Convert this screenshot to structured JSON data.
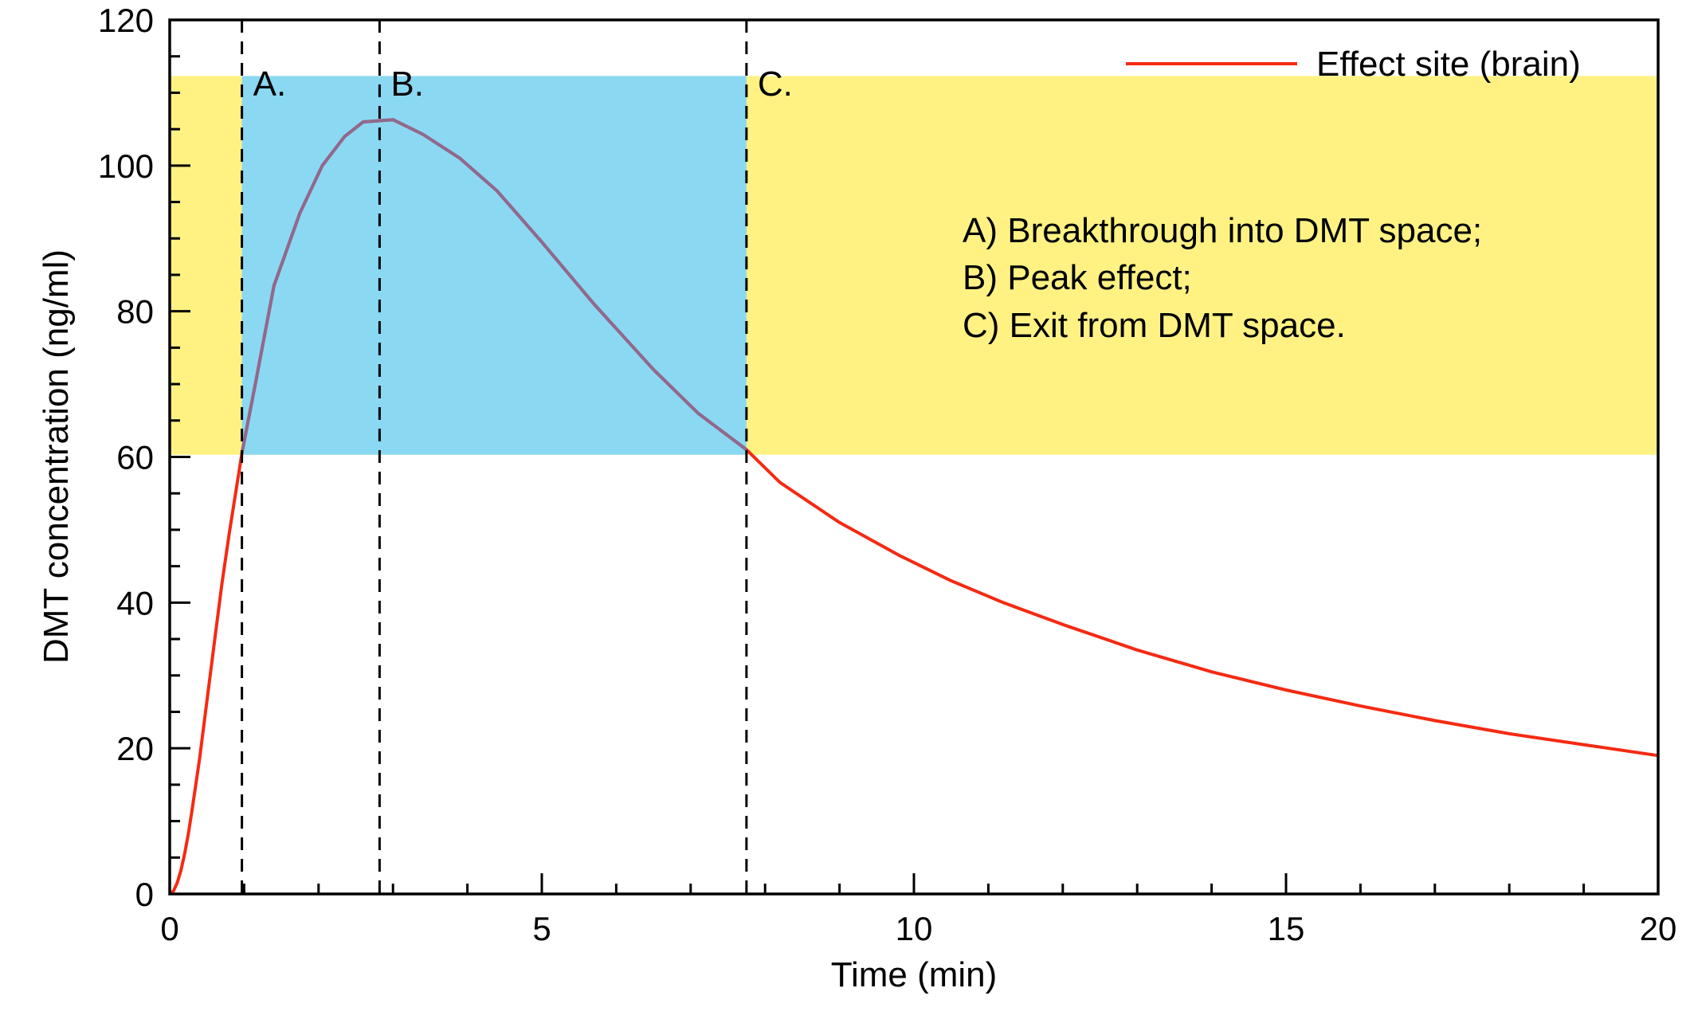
{
  "chart_data": {
    "type": "line",
    "xlabel": "Time (min)",
    "ylabel": "DMT concentration (ng/ml)",
    "xlim": [
      0,
      20
    ],
    "ylim": [
      0,
      120
    ],
    "x_ticks": [
      "0",
      "5",
      "10",
      "15",
      "20"
    ],
    "y_ticks": [
      "0",
      "20",
      "40",
      "60",
      "80",
      "100",
      "120"
    ],
    "grid": false,
    "legend_position": "top-right",
    "series": [
      {
        "name": "Effect site (brain)",
        "color": "#f52a12",
        "x": [
          0,
          0.05,
          0.1,
          0.15,
          0.2,
          0.25,
          0.3,
          0.4,
          0.5,
          0.6,
          0.7,
          0.8,
          0.9,
          0.97,
          1.15,
          1.4,
          1.75,
          2.05,
          2.35,
          2.6,
          3.0,
          3.4,
          3.9,
          4.4,
          5.0,
          5.7,
          6.5,
          7.1,
          7.75,
          8.2,
          9.0,
          9.8,
          10.5,
          11.2,
          12.0,
          13.0,
          14.0,
          15.0,
          16.0,
          17.0,
          18.0,
          19.0,
          20.0
        ],
        "y": [
          0,
          0.4,
          1.5,
          3.2,
          5.5,
          8.2,
          11.5,
          18.5,
          26.5,
          34.5,
          42.5,
          49.5,
          56.0,
          60.5,
          70,
          83.5,
          93.5,
          100,
          104,
          106,
          106.3,
          104.3,
          101,
          96.5,
          89.5,
          81,
          72,
          66,
          61,
          56.5,
          51,
          46.5,
          43,
          40,
          37,
          33.5,
          30.5,
          28,
          25.8,
          23.8,
          22,
          20.5,
          19
        ]
      }
    ],
    "effect_band": {
      "y_from": 60.3,
      "y_to": 112.3,
      "fill": "#fff283"
    },
    "active_band": {
      "x_from": 0.97,
      "x_to": 7.75,
      "fill": "#8bd8f3"
    },
    "in_band_line_color": "#8e6a8d",
    "markers": [
      {
        "x": 0.97,
        "label": "A."
      },
      {
        "x": 2.82,
        "label": "B."
      },
      {
        "x": 7.75,
        "label": "C."
      }
    ],
    "annotations": [
      "A) Breakthrough into DMT space;",
      "B) Peak effect;",
      "C) Exit from DMT space."
    ]
  }
}
